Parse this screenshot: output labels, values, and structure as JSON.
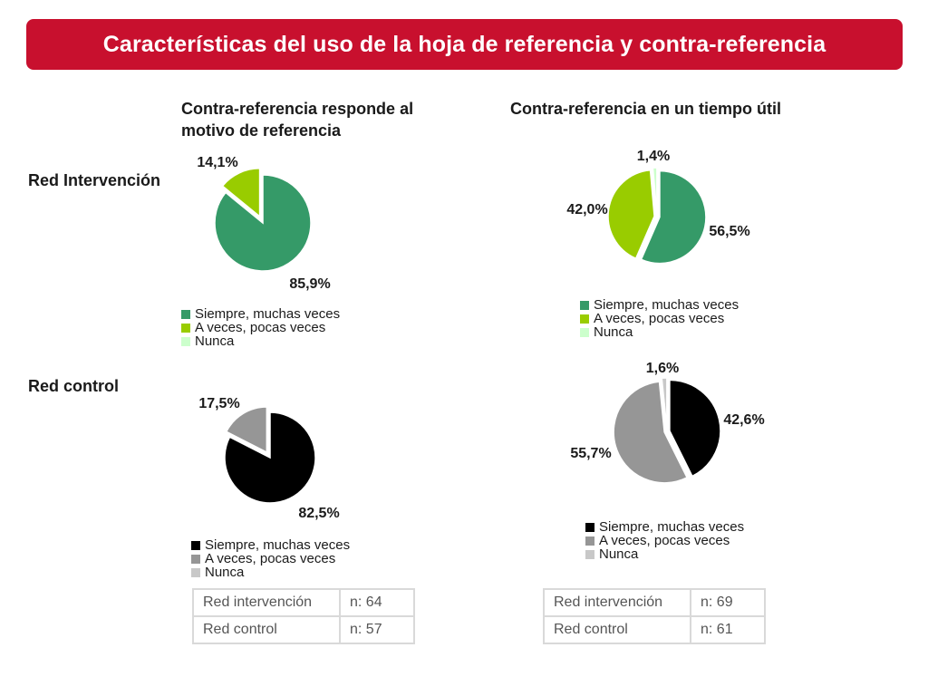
{
  "title": "Características del uso de la hoja de referencia y contra-referencia",
  "colors": {
    "title_bg": "#c8102e",
    "siempre_intervencion": "#359a68",
    "a_veces_intervencion": "#99cc00",
    "nunca_intervencion": "#ccffcc",
    "siempre_control": "#000000",
    "a_veces_control": "#969696",
    "nunca_control": "#c8c8c8"
  },
  "columns": [
    "Contra-referencia responde al motivo de referencia",
    "Contra-referencia en un tiempo útil"
  ],
  "rows": [
    "Red Intervención",
    "Red control"
  ],
  "legend_labels": [
    "Siempre, muchas veces",
    "A veces, pocas veces",
    "Nunca"
  ],
  "chart_data": [
    {
      "type": "pie",
      "title": "Contra-referencia responde al motivo de referencia",
      "group": "Red Intervención",
      "categories": [
        "Siempre, muchas veces",
        "A veces, pocas veces",
        "Nunca"
      ],
      "values": [
        85.9,
        14.1,
        0
      ],
      "labels": [
        "85,9%",
        "14,1%",
        ""
      ],
      "colors": [
        "#359a68",
        "#99cc00",
        "#ccffcc"
      ]
    },
    {
      "type": "pie",
      "title": "Contra-referencia en un tiempo útil",
      "group": "Red Intervención",
      "categories": [
        "Siempre, muchas veces",
        "A veces, pocas veces",
        "Nunca"
      ],
      "values": [
        56.5,
        42.0,
        1.4
      ],
      "labels": [
        "56,5%",
        "42,0%",
        "1,4%"
      ],
      "colors": [
        "#359a68",
        "#99cc00",
        "#ccffcc"
      ]
    },
    {
      "type": "pie",
      "title": "Contra-referencia responde al motivo de referencia",
      "group": "Red control",
      "categories": [
        "Siempre, muchas veces",
        "A veces, pocas veces",
        "Nunca"
      ],
      "values": [
        82.5,
        17.5,
        0
      ],
      "labels": [
        "82,5%",
        "17,5%",
        ""
      ],
      "colors": [
        "#000000",
        "#969696",
        "#c8c8c8"
      ]
    },
    {
      "type": "pie",
      "title": "Contra-referencia en un tiempo útil",
      "group": "Red control",
      "categories": [
        "Siempre, muchas veces",
        "A veces, pocas veces",
        "Nunca"
      ],
      "values": [
        42.6,
        55.7,
        1.6
      ],
      "labels": [
        "42,6%",
        "55,7%",
        "1,6%"
      ],
      "colors": [
        "#000000",
        "#969696",
        "#c8c8c8"
      ]
    }
  ],
  "sample_tables": [
    {
      "rows": [
        {
          "label": "Red intervención",
          "n": "n: 64"
        },
        {
          "label": "Red control",
          "n": "n: 57"
        }
      ]
    },
    {
      "rows": [
        {
          "label": "Red intervención",
          "n": "n: 69"
        },
        {
          "label": "Red control",
          "n": "n: 61"
        }
      ]
    }
  ]
}
